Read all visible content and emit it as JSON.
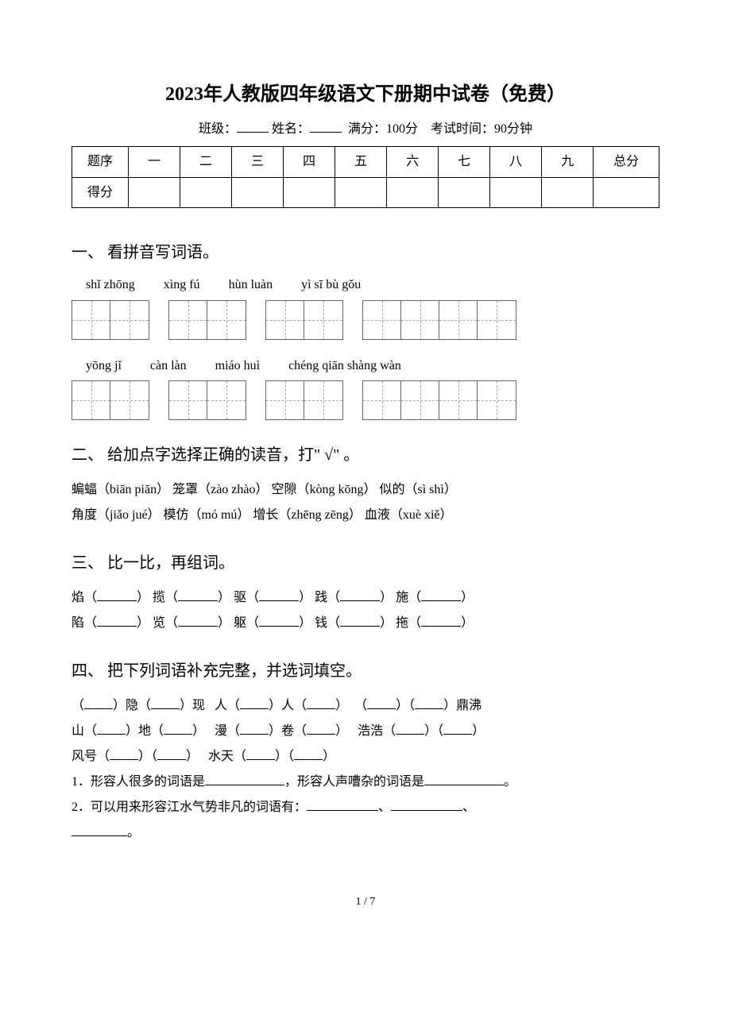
{
  "title": "2023年人教版四年级语文下册期中试卷（免费）",
  "meta": {
    "class_label": "班级：",
    "name_label": "姓名：",
    "full_score": "满分：100分",
    "exam_time": "考试时间：90分钟"
  },
  "score_table": {
    "row1_label": "题序",
    "row2_label": "得分",
    "columns": [
      "一",
      "二",
      "三",
      "四",
      "五",
      "六",
      "七",
      "八",
      "九"
    ],
    "total_label": "总分"
  },
  "section1": {
    "heading": "一、 看拼音写词语。",
    "row1_pinyin": [
      "shǐ zhōng",
      "xìng fú",
      "hùn luàn",
      "yì sī bù gǒu"
    ],
    "row1_box_counts": [
      2,
      2,
      2,
      4
    ],
    "row2_pinyin": [
      "yōng jǐ",
      "càn làn",
      "miáo huì",
      "chéng qiān shàng wàn"
    ],
    "row2_box_counts": [
      2,
      2,
      2,
      4
    ]
  },
  "section2": {
    "heading": "二、 给加点字选择正确的读音，打\" √\" 。",
    "line1": "蝙蝠（biān piān）  笼罩（zào zhào）  空隙（kòng kōng）   似的（sì shì）",
    "line2": "角度（jiǎo jué）   模仿（mó mú）   增长（zhēng zēng）  血液（xuè xiě）"
  },
  "section3": {
    "heading": "三、 比一比，再组词。",
    "pairs_row1": [
      "焰",
      "揽",
      "驱",
      "践",
      "施"
    ],
    "pairs_row2": [
      "陷",
      "览",
      "躯",
      "钱",
      "拖"
    ]
  },
  "section4": {
    "heading": "四、 把下列词语补充完整，并选词填空。",
    "line1_parts": [
      "（",
      "）隐（",
      "）现   人（",
      "）人（",
      "）  （",
      "）（",
      "）鼎沸"
    ],
    "line2_parts": [
      "山（",
      "）地（",
      "）   漫（",
      "）卷（",
      "）   浩浩（",
      "）（",
      "）"
    ],
    "line3_parts": [
      "风号（",
      "）（",
      "）   水天（",
      "）（",
      "）"
    ],
    "q1_prefix": "1．形容人很多的词语是",
    "q1_mid": "，形容人声嘈杂的词语是",
    "q1_suffix": "。",
    "q2_prefix": "2．可以用来形容江水气势非凡的词语有：",
    "q2_sep": "、",
    "q2_suffix": "。"
  },
  "footer": "1 / 7",
  "colors": {
    "text": "#000000",
    "background": "#ffffff",
    "border": "#000000",
    "dashed": "#aaaaaa"
  }
}
